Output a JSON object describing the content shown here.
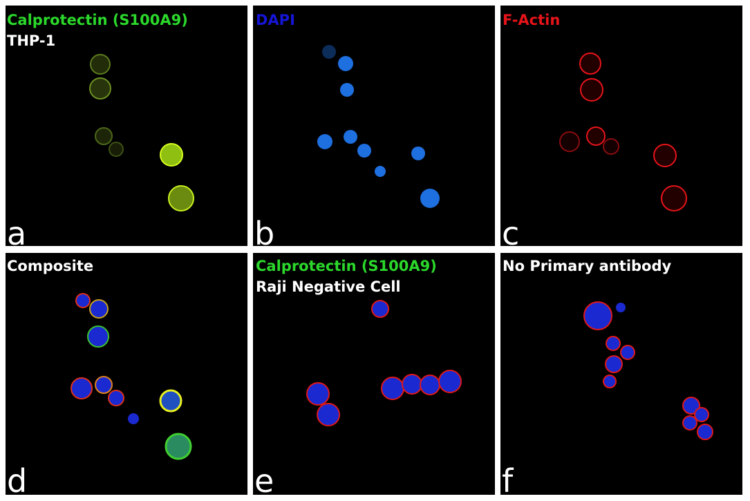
{
  "panels": [
    {
      "title": "Calprotectin (S100A9)",
      "subtitle": "THP-1",
      "letter": "a"
    },
    {
      "title": "DAPI",
      "letter": "b"
    },
    {
      "title": "F-Actin",
      "letter": "c"
    },
    {
      "title": "Composite",
      "letter": "d"
    },
    {
      "title": "Calprotectin (S100A9)",
      "subtitle": "Raji Negative Cell",
      "letter": "e"
    },
    {
      "title": "No Primary antibody",
      "letter": "f"
    }
  ]
}
